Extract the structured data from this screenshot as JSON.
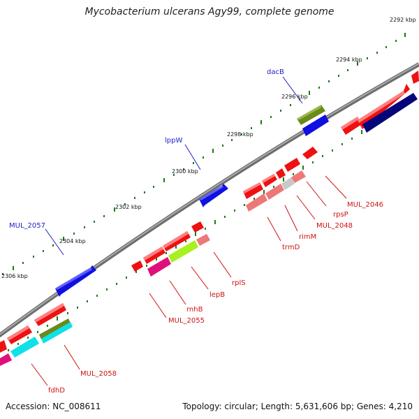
{
  "title": "Mycobacterium ulcerans Agy99, complete genome",
  "footer": {
    "accession": "Accession: NC_008611",
    "topology": "Topology: circular; Length: 5,631,606 bp; Genes: 4,210"
  },
  "scale_labels": [
    "2292 kbp",
    "2294 kbp",
    "2296 kbp",
    "2298 kbp",
    "2300 kbp",
    "2302 kbp",
    "2304 kbp",
    "2306 kbp"
  ],
  "gene_labels": {
    "outer": [
      "dacB",
      "lppW",
      "MUL_2057"
    ],
    "inner": [
      "MUL_2046",
      "rpsP",
      "MUL_2048",
      "rimM",
      "trmD",
      "rplS",
      "lepB",
      "rnhB",
      "MUL_2055",
      "MUL_2058",
      "fdhD"
    ]
  },
  "colors": {
    "backbone": "#808080",
    "outer_tick": "#1a7a1a",
    "inner_tick": "#1a7a1a",
    "gene_red": "#ee1111",
    "gene_pink": "#ee7777",
    "gene_blue": "#1010e0",
    "gene_navy": "#05057a",
    "gene_olive": "#6a8a1a",
    "gene_magenta": "#e0107a",
    "gene_lime": "#a8f020",
    "gene_cyan": "#10e0e8",
    "gene_gray": "#c8c8c8",
    "label_outer": "#1c1cc8",
    "label_inner": "#cc1111"
  }
}
